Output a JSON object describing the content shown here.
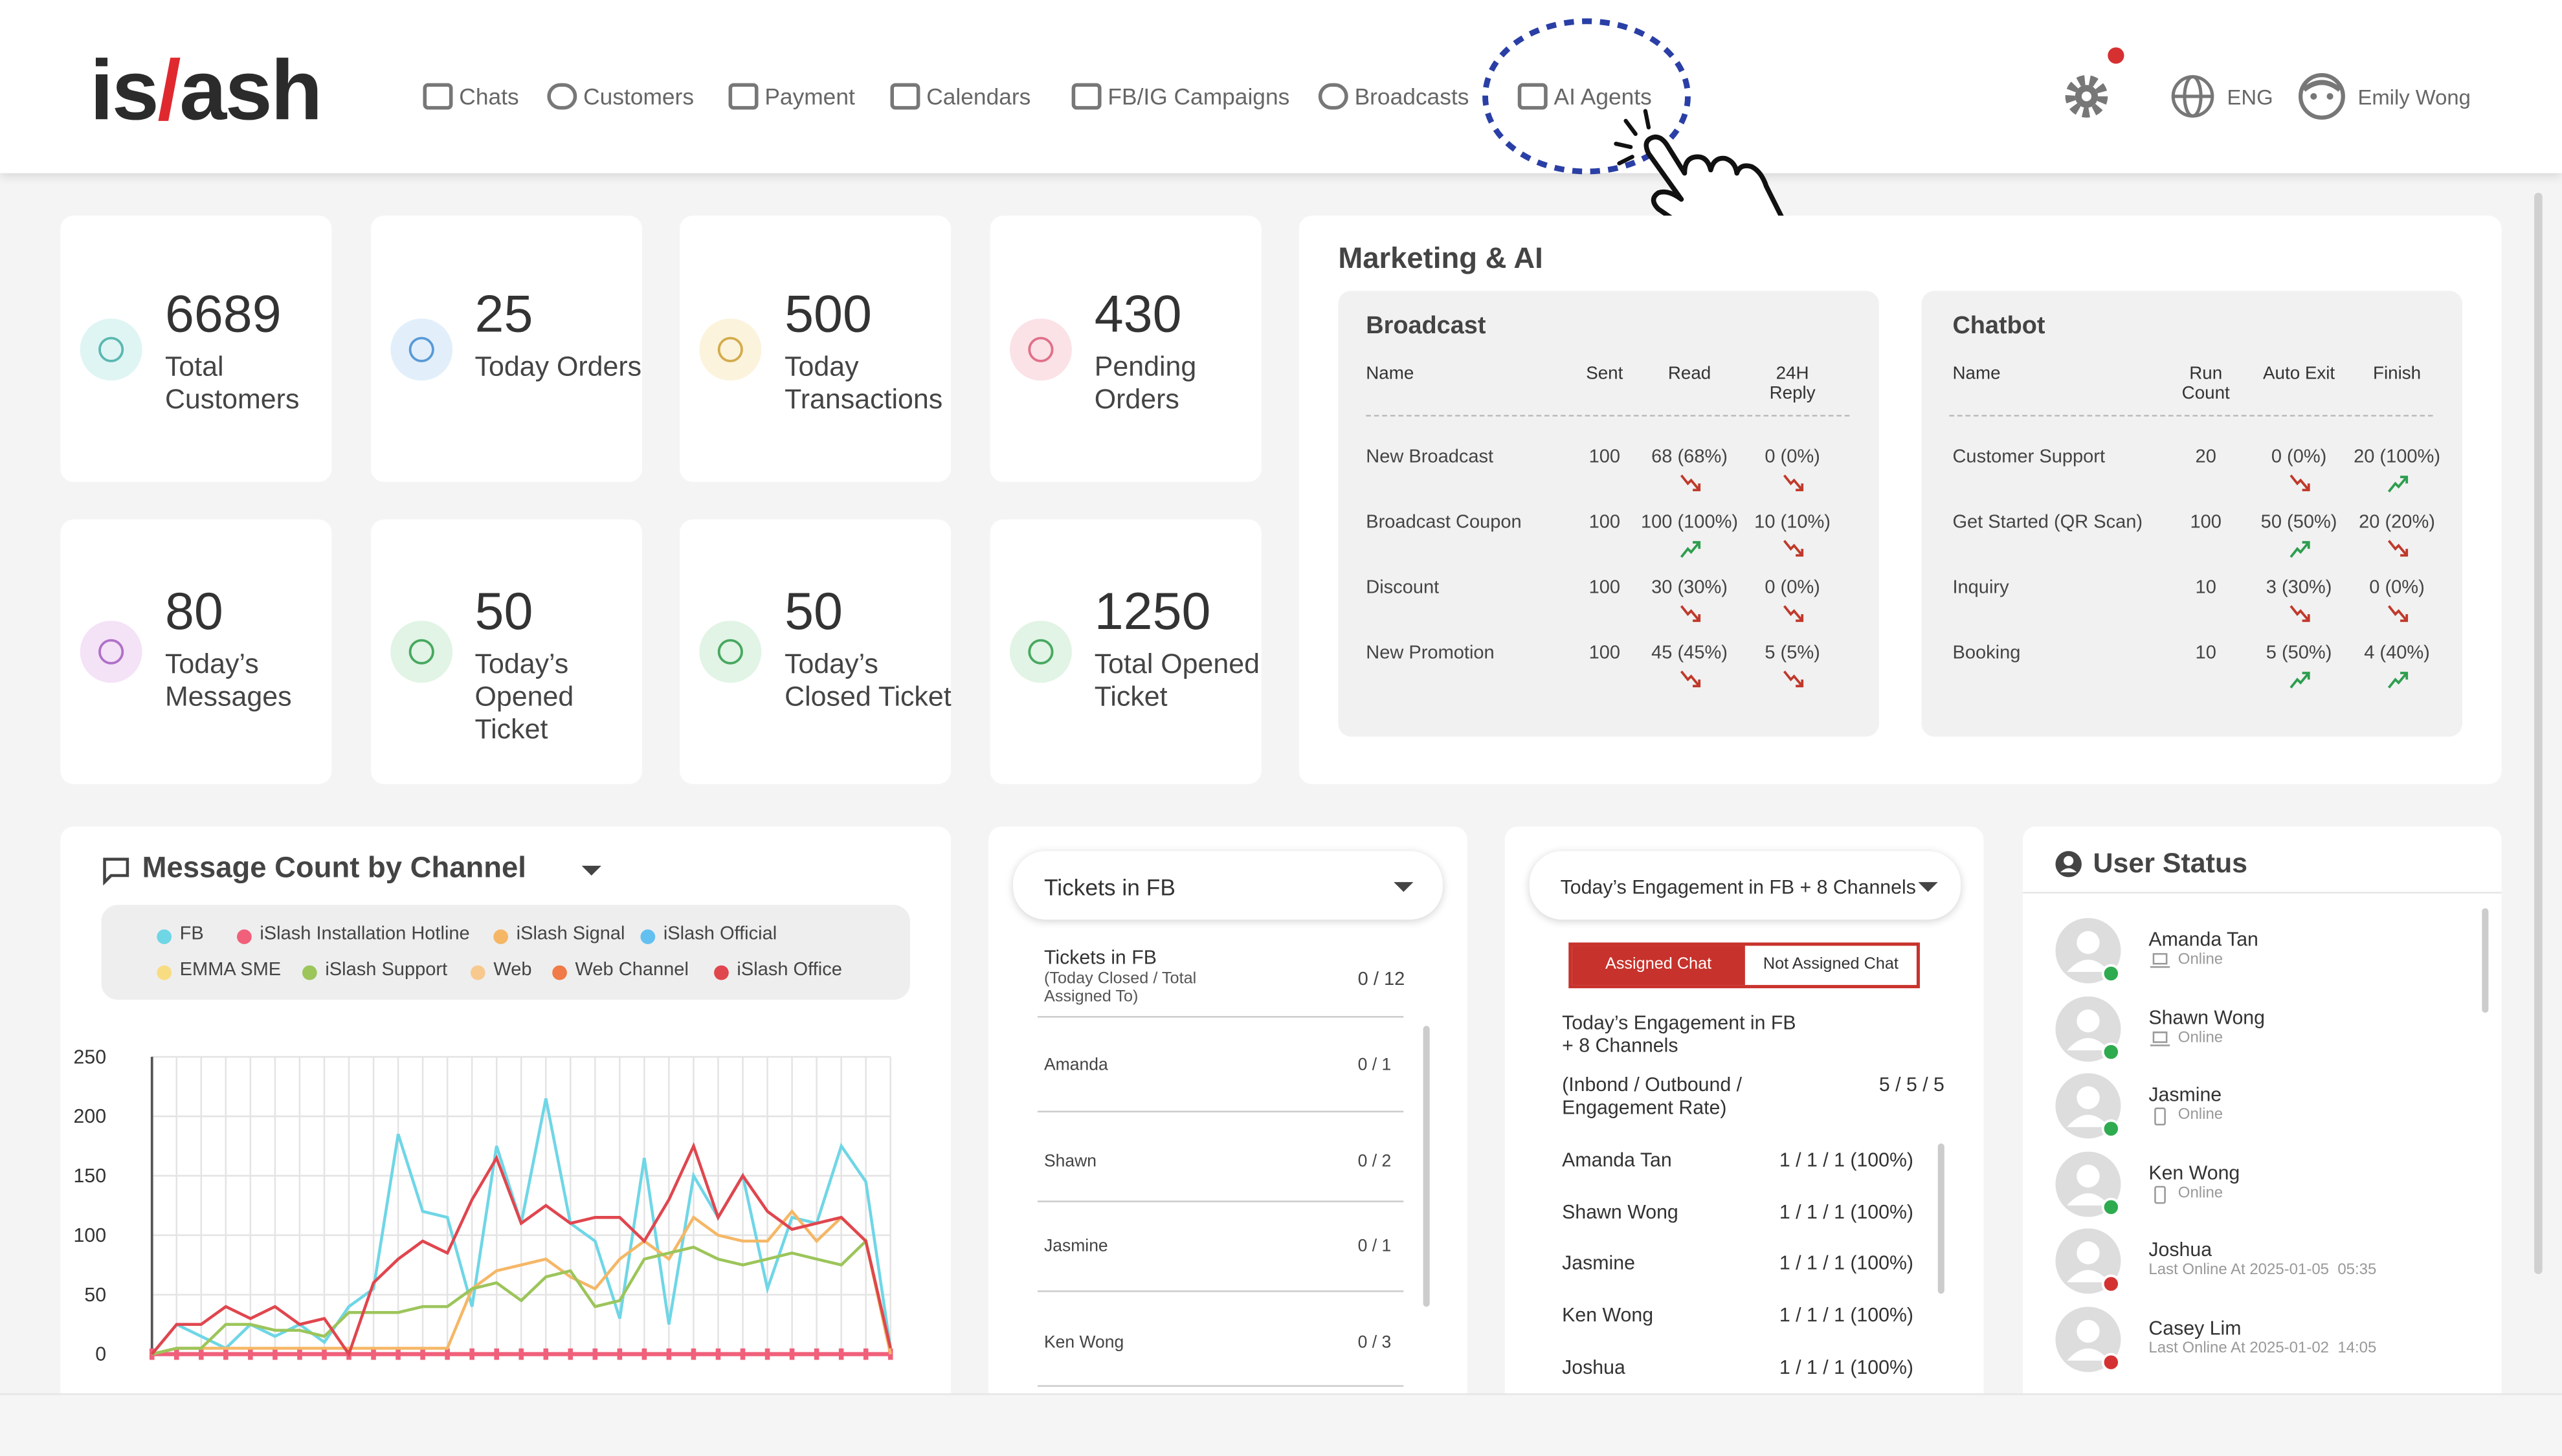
{
  "header": {
    "logo": {
      "left": "is",
      "slash": "/",
      "right": "ash"
    },
    "nav": [
      "Chats",
      "Customers",
      "Payment",
      "Calendars",
      "FB/IG Campaigns",
      "Broadcasts",
      "AI Agents"
    ],
    "language": "ENG",
    "user": "Emily Wong"
  },
  "stats": [
    {
      "value": 6689,
      "label": "Total Customers"
    },
    {
      "value": 25,
      "label": "Today Orders"
    },
    {
      "value": 500,
      "label": "Today Transactions"
    },
    {
      "value": 430,
      "label": "Pending Orders"
    },
    {
      "value": 80,
      "label": "Today’s Messages"
    },
    {
      "value": 50,
      "label": "Today’s Opened Ticket"
    },
    {
      "value": 50,
      "label": "Today’s Closed Ticket"
    },
    {
      "value": 1250,
      "label": "Total Opened Ticket"
    }
  ],
  "marketing": {
    "title": "Marketing & AI",
    "broadcast": {
      "title": "Broadcast",
      "columns": [
        "Name",
        "Sent",
        "Read",
        "24H Reply"
      ],
      "rows": [
        {
          "name": "New Broadcast",
          "sent": 100,
          "read": "68 (68%)",
          "read_trend": "down",
          "reply": "0 (0%)",
          "reply_trend": "down"
        },
        {
          "name": "Broadcast Coupon",
          "sent": 100,
          "read": "100 (100%)",
          "read_trend": "up",
          "reply": "10 (10%)",
          "reply_trend": "down"
        },
        {
          "name": "Discount",
          "sent": 100,
          "read": "30 (30%)",
          "read_trend": "down",
          "reply": "0 (0%)",
          "reply_trend": "down"
        },
        {
          "name": "New Promotion",
          "sent": 100,
          "read": "45 (45%)",
          "read_trend": "down",
          "reply": "5 (5%)",
          "reply_trend": "down"
        }
      ]
    },
    "chatbot": {
      "title": "Chatbot",
      "columns": [
        "Name",
        "Run Count",
        "Auto Exit",
        "Finish"
      ],
      "rows": [
        {
          "name": "Customer Support",
          "run_count": 20,
          "auto_exit": "0 (0%)",
          "auto_exit_trend": "down",
          "finish": "20 (100%)",
          "finish_trend": "up"
        },
        {
          "name": "Get Started (QR Scan)",
          "run_count": 100,
          "auto_exit": "50 (50%)",
          "auto_exit_trend": "up",
          "finish": "20 (20%)",
          "finish_trend": "down"
        },
        {
          "name": "Inquiry",
          "run_count": 10,
          "auto_exit": "3 (30%)",
          "auto_exit_trend": "down",
          "finish": "0 (0%)",
          "finish_trend": "down"
        },
        {
          "name": "Booking",
          "run_count": 10,
          "auto_exit": "5 (50%)",
          "auto_exit_trend": "up",
          "finish": "4 (40%)",
          "finish_trend": "up"
        }
      ]
    }
  },
  "message_count": {
    "title": "Message Count by Channel"
  },
  "chart_data": {
    "type": "line",
    "ylim": [
      0,
      250
    ],
    "yticks": [
      0,
      50,
      100,
      150,
      200,
      250
    ],
    "grid": true,
    "series": [
      {
        "name": "FB",
        "color": "#6fd6e6",
        "values": [
          0,
          25,
          15,
          5,
          25,
          15,
          25,
          10,
          40,
          55,
          185,
          120,
          115,
          40,
          175,
          110,
          215,
          110,
          95,
          30,
          165,
          25,
          150,
          115,
          150,
          55,
          115,
          110,
          175,
          145,
          5
        ]
      },
      {
        "name": "iSlash Installation Hotline",
        "color": "#f0607a",
        "values": [
          0,
          0,
          0,
          0,
          0,
          0,
          0,
          0,
          0,
          0,
          0,
          0,
          0,
          0,
          0,
          0,
          0,
          0,
          0,
          0,
          0,
          0,
          0,
          0,
          0,
          0,
          0,
          0,
          0,
          0,
          0
        ]
      },
      {
        "name": "iSlash Signal",
        "color": "#f5b766",
        "values": [
          0,
          5,
          5,
          5,
          5,
          5,
          5,
          5,
          5,
          5,
          5,
          5,
          5,
          55,
          70,
          75,
          80,
          65,
          55,
          80,
          95,
          80,
          115,
          100,
          95,
          95,
          120,
          95,
          115,
          95,
          0
        ]
      },
      {
        "name": "iSlash Official",
        "color": "#62c0f0",
        "values": []
      },
      {
        "name": "EMMA SME",
        "color": "#f8dc82",
        "values": []
      },
      {
        "name": "iSlash Support",
        "color": "#9cc55a",
        "values": [
          0,
          5,
          5,
          25,
          25,
          20,
          20,
          15,
          35,
          35,
          35,
          40,
          40,
          55,
          60,
          45,
          65,
          70,
          40,
          45,
          80,
          85,
          90,
          80,
          75,
          80,
          85,
          80,
          75,
          95,
          5
        ]
      },
      {
        "name": "Web",
        "color": "#f8c98e",
        "values": []
      },
      {
        "name": "Web Channel",
        "color": "#f07a48",
        "values": []
      },
      {
        "name": "iSlash Office",
        "color": "#e0464e",
        "values": [
          0,
          25,
          25,
          40,
          30,
          40,
          25,
          30,
          0,
          60,
          80,
          95,
          85,
          130,
          165,
          110,
          125,
          110,
          115,
          115,
          95,
          130,
          175,
          115,
          150,
          120,
          105,
          110,
          115,
          95,
          5
        ]
      }
    ]
  },
  "tickets": {
    "dropdown": "Tickets in FB",
    "header": {
      "title": "Tickets in FB",
      "subtitle": "(Today Closed / Total Assigned To)",
      "value": "0 / 12"
    },
    "rows": [
      {
        "name": "Amanda",
        "value": "0 / 1"
      },
      {
        "name": "Shawn",
        "value": "0 / 2"
      },
      {
        "name": "Jasmine",
        "value": "0 / 1"
      },
      {
        "name": "Ken Wong",
        "value": "0 / 3"
      }
    ]
  },
  "engagement": {
    "dropdown": "Today’s Engagement in FB + 8 Channels",
    "tabs": [
      "Assigned Chat",
      "Not Assigned Chat"
    ],
    "heading": "Today’s Engagement in FB + 8 Channels",
    "subheading": "(Inbond / Outbound / Engagement Rate)",
    "total": "5 / 5 / 5",
    "rows": [
      {
        "name": "Amanda Tan",
        "value": "1 / 1 / 1 (100%)"
      },
      {
        "name": "Shawn Wong",
        "value": "1 / 1 / 1 (100%)"
      },
      {
        "name": "Jasmine",
        "value": "1 / 1 / 1 (100%)"
      },
      {
        "name": "Ken Wong",
        "value": "1 / 1 / 1 (100%)"
      },
      {
        "name": "Joshua",
        "value": "1 / 1 / 1 (100%)"
      }
    ]
  },
  "user_status": {
    "title": "User Status",
    "users": [
      {
        "name": "Amanda Tan",
        "status": "Online",
        "online": true,
        "device": "laptop"
      },
      {
        "name": "Shawn Wong",
        "status": "Online",
        "online": true,
        "device": "laptop"
      },
      {
        "name": "Jasmine",
        "status": "Online",
        "online": true,
        "device": "phone"
      },
      {
        "name": "Ken Wong",
        "status": "Online",
        "online": true,
        "device": "phone"
      },
      {
        "name": "Joshua",
        "status": "Last Online At 2025-01-05  05:35",
        "online": false,
        "device": "none"
      },
      {
        "name": "Casey Lim",
        "status": "Last Online At 2025-01-02  14:05",
        "online": false,
        "device": "none"
      }
    ]
  }
}
